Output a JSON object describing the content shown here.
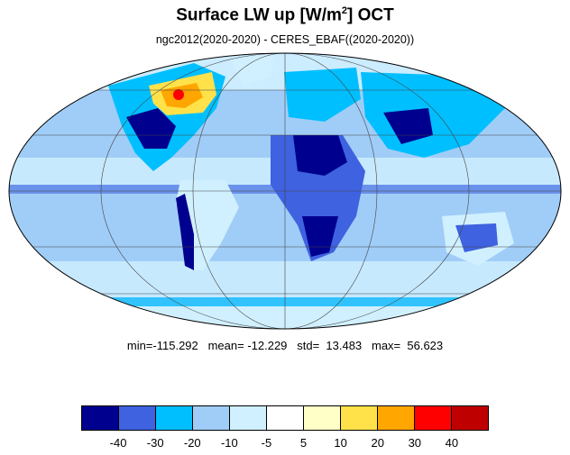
{
  "title": {
    "main": "Surface LW up [W/m",
    "sup": "2",
    "tail": "]  OCT"
  },
  "subtitle": "ngc2012(2020-2020) - CERES_EBAF((2020-2020))",
  "stats": "min=-115.292   mean= -12.229   std=  13.483   max=  56.623",
  "colorbar": {
    "colors": [
      "#00008f",
      "#3e62e0",
      "#00bfff",
      "#a0cdf7",
      "#d0f0ff",
      "#ffffff",
      "#ffffc8",
      "#ffe24a",
      "#ffa600",
      "#ff0000",
      "#be0000"
    ],
    "levels": [
      "-40",
      "-30",
      "-20",
      "-10",
      "-5",
      "5",
      "10",
      "20",
      "30",
      "40"
    ]
  },
  "map_colors": {
    "ocean": "#a0cdf7",
    "light": "#d0f0ff",
    "mid": "#00bfff",
    "dark": "#00008f",
    "blue": "#3e62e0",
    "warm": "#ffe24a",
    "orange": "#ffa600",
    "red": "#ff0000"
  }
}
